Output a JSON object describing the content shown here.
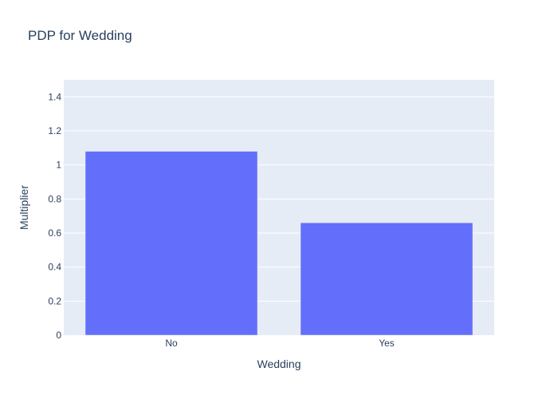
{
  "chart_data": {
    "type": "bar",
    "title": "PDP for Wedding",
    "xlabel": "Wedding",
    "ylabel": "Multiplier",
    "categories": [
      "No",
      "Yes"
    ],
    "values": [
      1.08,
      0.66
    ],
    "ylim": [
      0,
      1.5
    ],
    "yticks": [
      0,
      0.2,
      0.4,
      0.6,
      0.8,
      1,
      1.2,
      1.4
    ],
    "yticklabels": [
      "0",
      "0.2",
      "0.4",
      "0.6",
      "0.8",
      "1",
      "1.2",
      "1.4"
    ],
    "grid": true,
    "colors": {
      "bar": "#636efa",
      "plot_bg": "#e5ecf6",
      "grid": "#ffffff",
      "text": "#2a3f5f"
    }
  }
}
